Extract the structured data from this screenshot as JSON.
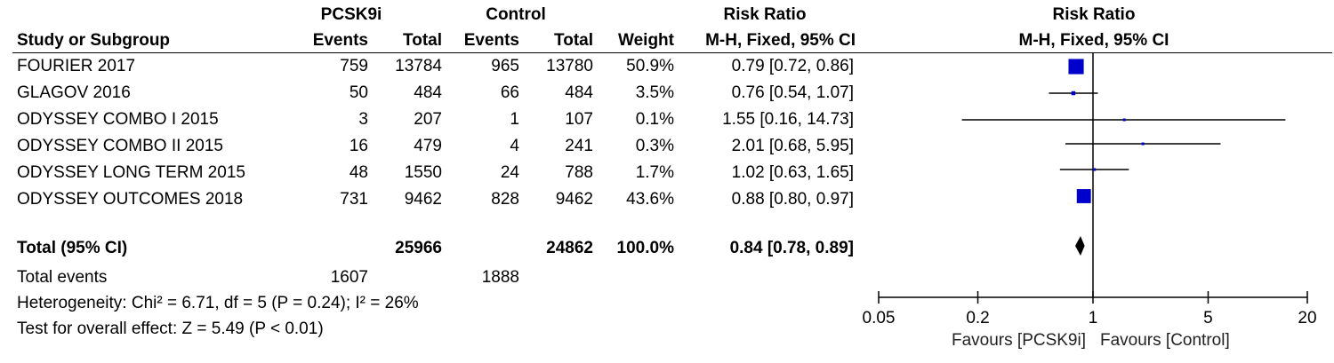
{
  "header": {
    "group1": "PCSK9i",
    "group2": "Control",
    "rr_title": "Risk Ratio",
    "study_col": "Study or Subgroup",
    "events": "Events",
    "total": "Total",
    "weight": "Weight",
    "method": "M-H, Fixed, 95% CI",
    "plot_title": "Risk Ratio",
    "plot_method": "M-H, Fixed, 95% CI"
  },
  "studies": [
    {
      "name": "FOURIER 2017",
      "e1": "759",
      "n1": "13784",
      "e2": "965",
      "n2": "13780",
      "weight": "50.9%",
      "ci": "0.79 [0.72, 0.86]"
    },
    {
      "name": "GLAGOV 2016",
      "e1": "50",
      "n1": "484",
      "e2": "66",
      "n2": "484",
      "weight": "3.5%",
      "ci": "0.76 [0.54, 1.07]"
    },
    {
      "name": "ODYSSEY COMBO I 2015",
      "e1": "3",
      "n1": "207",
      "e2": "1",
      "n2": "107",
      "weight": "0.1%",
      "ci": "1.55 [0.16, 14.73]"
    },
    {
      "name": "ODYSSEY COMBO II 2015",
      "e1": "16",
      "n1": "479",
      "e2": "4",
      "n2": "241",
      "weight": "0.3%",
      "ci": "2.01 [0.68, 5.95]"
    },
    {
      "name": "ODYSSEY LONG TERM 2015",
      "e1": "48",
      "n1": "1550",
      "e2": "24",
      "n2": "788",
      "weight": "1.7%",
      "ci": "1.02 [0.63, 1.65]"
    },
    {
      "name": "ODYSSEY OUTCOMES 2018",
      "e1": "731",
      "n1": "9462",
      "e2": "828",
      "n2": "9462",
      "weight": "43.6%",
      "ci": "0.88 [0.80, 0.97]"
    }
  ],
  "total": {
    "label": "Total (95% CI)",
    "n1": "25966",
    "n2": "24862",
    "weight": "100.0%",
    "ci": "0.84 [0.78, 0.89]"
  },
  "total_events": {
    "label": "Total events",
    "e1": "1607",
    "e2": "1888"
  },
  "heterogeneity": "Heterogeneity: Chi² = 6.71, df = 5 (P = 0.24); I² = 26%",
  "overall_effect": "Test for overall effect: Z = 5.49 (P < 0.01)",
  "chart_data": {
    "type": "scatter",
    "title": "Risk Ratio",
    "subtitle": "M-H, Fixed, 95% CI",
    "xscale": "log",
    "xlim": [
      0.05,
      20
    ],
    "xticks": [
      0.05,
      0.2,
      1,
      5,
      20
    ],
    "xtick_labels": [
      "0.05",
      "0.2",
      "1",
      "5",
      "20"
    ],
    "reference_line": 1,
    "favours_left": "Favours [PCSK9i]",
    "favours_right": "Favours [Control]",
    "marker_color": "#0000cc",
    "studies": [
      {
        "rr": 0.79,
        "lo": 0.72,
        "hi": 0.86,
        "weight": 50.9
      },
      {
        "rr": 0.76,
        "lo": 0.54,
        "hi": 1.07,
        "weight": 3.5
      },
      {
        "rr": 1.55,
        "lo": 0.16,
        "hi": 14.73,
        "weight": 0.1
      },
      {
        "rr": 2.01,
        "lo": 0.68,
        "hi": 5.95,
        "weight": 0.3
      },
      {
        "rr": 1.02,
        "lo": 0.63,
        "hi": 1.65,
        "weight": 1.7
      },
      {
        "rr": 0.88,
        "lo": 0.8,
        "hi": 0.97,
        "weight": 43.6
      }
    ],
    "pooled": {
      "rr": 0.84,
      "lo": 0.78,
      "hi": 0.89
    }
  }
}
